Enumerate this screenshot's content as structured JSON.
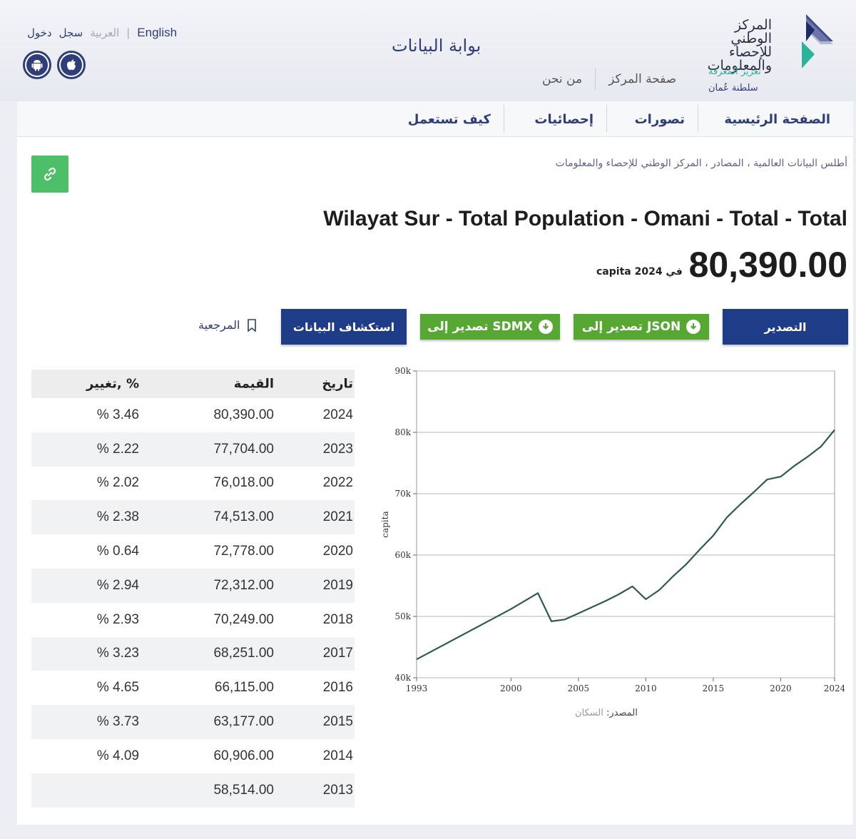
{
  "header": {
    "lang_english": "English",
    "lang_arabic": "العربية",
    "register": "سجل",
    "login": "دخول",
    "portal_title": "بوابة البيانات",
    "center_page": "صفحة المركز",
    "about_us": "من نحن",
    "logo_line1": "المركز الوطني",
    "logo_line2": "للإحصاء",
    "logo_line3": "والمعلومات",
    "logo_tagline": "تعزيز المعرفة",
    "logo_country": "سلطنة عُمان"
  },
  "nav": {
    "home": "الصفحة الرئيسية",
    "visualizations": "تصورات",
    "statistics": "إحصائيات",
    "how_to_use": "كيف تستعمل"
  },
  "page": {
    "breadcrumb": "أطلس البيانات العالمية ، المصادر ، المركز الوطني للإحصاء والمعلومات",
    "title": "Wilayat Sur - Total Population - Omani - Total - Total",
    "big_value": "80,390.00",
    "value_meta": "capita في 2024"
  },
  "actions": {
    "export": "التصدير",
    "export_json": "تصدير إلى JSON",
    "export_sdmx": "تصدير إلى SDMX",
    "explore": "استكشاف البيانات",
    "reference": "المرجعية"
  },
  "table": {
    "headers": {
      "year": "تاريخ",
      "value": "القيمة",
      "change": "تغيير, %"
    },
    "rows": [
      {
        "year": "2024",
        "value": "80,390.00",
        "change": "% 3.46"
      },
      {
        "year": "2023",
        "value": "77,704.00",
        "change": "% 2.22"
      },
      {
        "year": "2022",
        "value": "76,018.00",
        "change": "% 2.02"
      },
      {
        "year": "2021",
        "value": "74,513.00",
        "change": "% 2.38"
      },
      {
        "year": "2020",
        "value": "72,778.00",
        "change": "% 0.64"
      },
      {
        "year": "2019",
        "value": "72,312.00",
        "change": "% 2.94"
      },
      {
        "year": "2018",
        "value": "70,249.00",
        "change": "% 2.93"
      },
      {
        "year": "2017",
        "value": "68,251.00",
        "change": "% 3.23"
      },
      {
        "year": "2016",
        "value": "66,115.00",
        "change": "% 4.65"
      },
      {
        "year": "2015",
        "value": "63,177.00",
        "change": "% 3.73"
      },
      {
        "year": "2014",
        "value": "60,906.00",
        "change": "% 4.09"
      },
      {
        "year": "2013",
        "value": "58,514.00",
        "change": ""
      }
    ]
  },
  "chart_data": {
    "type": "line",
    "ylabel": "capita",
    "xlabel": "",
    "ylim": [
      40000,
      90000
    ],
    "xlim": [
      1993,
      2024
    ],
    "y_ticks": [
      {
        "value": 40000,
        "label": "40k"
      },
      {
        "value": 50000,
        "label": "50k"
      },
      {
        "value": 60000,
        "label": "60k"
      },
      {
        "value": 70000,
        "label": "70k"
      },
      {
        "value": 80000,
        "label": "80k"
      },
      {
        "value": 90000,
        "label": "90k"
      }
    ],
    "x_ticks": [
      1993,
      2000,
      2005,
      2010,
      2015,
      2020,
      2024
    ],
    "grid": "horizontal",
    "line_color": "#2e5c48",
    "series": [
      {
        "x": [
          1993,
          2000,
          2002,
          2003,
          2004,
          2005,
          2006,
          2007,
          2008,
          2009,
          2010,
          2011,
          2012,
          2013,
          2014,
          2015,
          2016,
          2017,
          2018,
          2019,
          2020,
          2021,
          2022,
          2023,
          2024
        ],
        "values": [
          43000,
          51200,
          53800,
          49200,
          49500,
          50500,
          51500,
          52500,
          53600,
          54900,
          52800,
          54300,
          56500,
          58514,
          60906,
          63177,
          66115,
          68251,
          70249,
          72312,
          72778,
          74513,
          76018,
          77704,
          80390
        ]
      }
    ],
    "source_label": "المصدر:",
    "source_value": "السكان"
  },
  "colors": {
    "primary": "#1f3c88",
    "green": "#57a733",
    "link_green": "#4cbf68"
  }
}
